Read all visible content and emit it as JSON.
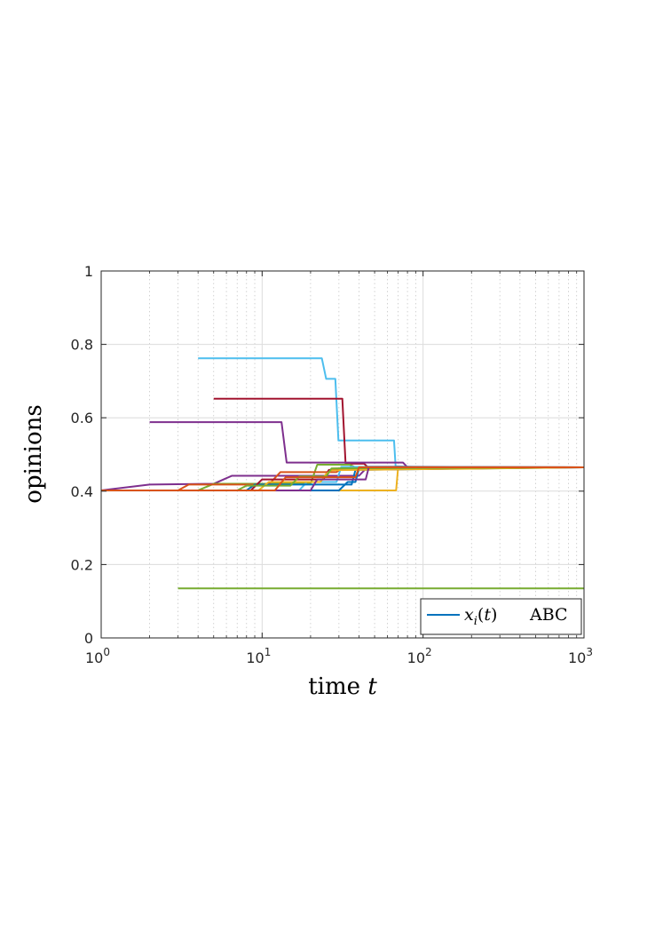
{
  "chart_data": {
    "type": "line",
    "xscale": "log",
    "xlim": [
      1,
      1000
    ],
    "ylim": [
      0,
      1
    ],
    "xlabel": "time t",
    "ylabel": "opinions",
    "xticks": [
      {
        "value": 1,
        "base": "10",
        "exp": "0"
      },
      {
        "value": 10,
        "base": "10",
        "exp": "1"
      },
      {
        "value": 100,
        "base": "10",
        "exp": "2"
      },
      {
        "value": 1000,
        "base": "10",
        "exp": "3"
      }
    ],
    "yticks": [
      {
        "value": 0,
        "label": "0"
      },
      {
        "value": 0.2,
        "label": "0.2"
      },
      {
        "value": 0.4,
        "label": "0.4"
      },
      {
        "value": 0.6,
        "label": "0.6"
      },
      {
        "value": 0.8,
        "label": "0.8"
      },
      {
        "value": 1,
        "label": "1"
      }
    ],
    "grid": true,
    "minor_grid_x": true,
    "legend": {
      "location": "bottom-right",
      "entries": [
        {
          "symbol": "x_i(t)",
          "label": "ABC",
          "color": "#0072bd"
        }
      ]
    },
    "series": [
      {
        "color": "#4dbeee",
        "points": [
          [
            4,
            0.762
          ],
          [
            23.5,
            0.762
          ],
          [
            25,
            0.706
          ],
          [
            28.5,
            0.706
          ],
          [
            29.8,
            0.538
          ],
          [
            66,
            0.538
          ],
          [
            67.5,
            0.468
          ],
          [
            100,
            0.465
          ],
          [
            1000,
            0.465
          ]
        ]
      },
      {
        "color": "#a2142f",
        "points": [
          [
            5,
            0.652
          ],
          [
            31.5,
            0.652
          ],
          [
            33,
            0.475
          ],
          [
            43,
            0.475
          ],
          [
            45,
            0.467
          ],
          [
            1000,
            0.465
          ]
        ]
      },
      {
        "color": "#7e2f8e",
        "points": [
          [
            2,
            0.588
          ],
          [
            13.2,
            0.588
          ],
          [
            14.2,
            0.478
          ],
          [
            75,
            0.478
          ],
          [
            80,
            0.465
          ],
          [
            1000,
            0.465
          ]
        ]
      },
      {
        "color": "#7e2f8e",
        "points": [
          [
            1,
            0.402
          ],
          [
            2,
            0.418
          ],
          [
            5,
            0.42
          ],
          [
            6.5,
            0.442
          ],
          [
            40,
            0.442
          ],
          [
            45,
            0.465
          ],
          [
            1000,
            0.465
          ]
        ]
      },
      {
        "color": "#77ac30",
        "points": [
          [
            3,
            0.135
          ],
          [
            1000,
            0.135
          ]
        ]
      },
      {
        "color": "#77ac30",
        "points": [
          [
            1,
            0.402
          ],
          [
            4,
            0.402
          ],
          [
            5,
            0.42
          ],
          [
            20,
            0.42
          ],
          [
            22,
            0.472
          ],
          [
            35,
            0.472
          ],
          [
            38,
            0.465
          ],
          [
            1000,
            0.465
          ]
        ]
      },
      {
        "color": "#edb120",
        "points": [
          [
            1,
            0.402
          ],
          [
            68,
            0.402
          ],
          [
            70,
            0.465
          ],
          [
            1000,
            0.465
          ]
        ]
      },
      {
        "color": "#d95319",
        "points": [
          [
            1,
            0.402
          ],
          [
            3,
            0.402
          ],
          [
            3.5,
            0.418
          ],
          [
            11,
            0.418
          ],
          [
            13,
            0.452
          ],
          [
            29,
            0.452
          ],
          [
            32,
            0.466
          ],
          [
            1000,
            0.465
          ]
        ]
      },
      {
        "color": "#0072bd",
        "points": [
          [
            1,
            0.402
          ],
          [
            30,
            0.402
          ],
          [
            34,
            0.425
          ],
          [
            38,
            0.425
          ],
          [
            40,
            0.462
          ],
          [
            1000,
            0.465
          ]
        ]
      },
      {
        "color": "#4dbeee",
        "points": [
          [
            1,
            0.402
          ],
          [
            17,
            0.402
          ],
          [
            19,
            0.425
          ],
          [
            29,
            0.425
          ],
          [
            31,
            0.466
          ],
          [
            1000,
            0.465
          ]
        ]
      },
      {
        "color": "#0072bd",
        "points": [
          [
            1,
            0.402
          ],
          [
            8,
            0.402
          ],
          [
            9,
            0.418
          ],
          [
            36,
            0.418
          ],
          [
            38,
            0.458
          ],
          [
            1000,
            0.465
          ]
        ]
      },
      {
        "color": "#a2142f",
        "points": [
          [
            1,
            0.402
          ],
          [
            8.5,
            0.402
          ],
          [
            10,
            0.432
          ],
          [
            24,
            0.432
          ],
          [
            26,
            0.458
          ],
          [
            1000,
            0.465
          ]
        ]
      },
      {
        "color": "#edb120",
        "points": [
          [
            1,
            0.402
          ],
          [
            9.5,
            0.402
          ],
          [
            11,
            0.425
          ],
          [
            23,
            0.425
          ],
          [
            25,
            0.447
          ],
          [
            27,
            0.457
          ],
          [
            1000,
            0.465
          ]
        ]
      },
      {
        "color": "#77ac30",
        "points": [
          [
            1,
            0.402
          ],
          [
            7,
            0.402
          ],
          [
            8,
            0.415
          ],
          [
            15,
            0.415
          ],
          [
            17,
            0.44
          ],
          [
            25,
            0.44
          ],
          [
            27,
            0.462
          ],
          [
            1000,
            0.465
          ]
        ]
      },
      {
        "color": "#7e2f8e",
        "points": [
          [
            1,
            0.402
          ],
          [
            20,
            0.402
          ],
          [
            22,
            0.432
          ],
          [
            44,
            0.432
          ],
          [
            46,
            0.465
          ],
          [
            1000,
            0.465
          ]
        ]
      },
      {
        "color": "#d95319",
        "points": [
          [
            1,
            0.402
          ],
          [
            12,
            0.402
          ],
          [
            14,
            0.438
          ],
          [
            38,
            0.438
          ],
          [
            40,
            0.465
          ],
          [
            1000,
            0.465
          ]
        ]
      }
    ]
  }
}
